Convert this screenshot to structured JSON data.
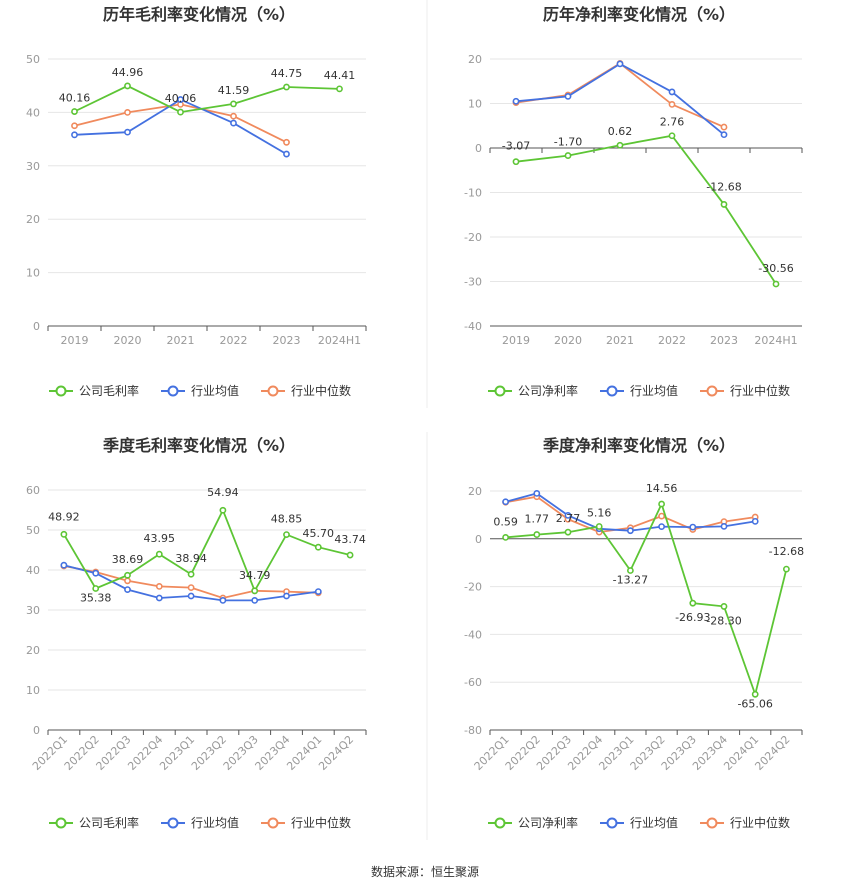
{
  "source_text": "数据来源：恒生聚源",
  "colors": {
    "company": "#5dc535",
    "industry_avg": "#4471e0",
    "industry_median": "#f08a5d"
  },
  "chart_data": [
    {
      "type": "line",
      "title": "历年毛利率变化情况（%）",
      "categories": [
        "2019",
        "2020",
        "2021",
        "2022",
        "2023",
        "2024H1"
      ],
      "ylim": [
        0,
        50
      ],
      "yticks": [
        0,
        10,
        20,
        30,
        40,
        50
      ],
      "grid": true,
      "legend": "bottom",
      "series": [
        {
          "name": "公司毛利率",
          "color": "#5dc535",
          "labels": true,
          "values": [
            40.16,
            44.96,
            40.06,
            41.59,
            44.75,
            44.41
          ]
        },
        {
          "name": "行业均值",
          "color": "#4471e0",
          "labels": false,
          "values": [
            35.8,
            36.3,
            42.4,
            38.0,
            32.2,
            null
          ]
        },
        {
          "name": "行业中位数",
          "color": "#f08a5d",
          "labels": false,
          "values": [
            37.5,
            40.0,
            41.5,
            39.3,
            34.4,
            null
          ]
        }
      ]
    },
    {
      "type": "line",
      "title": "历年净利率变化情况（%）",
      "categories": [
        "2019",
        "2020",
        "2021",
        "2022",
        "2023",
        "2024H1"
      ],
      "ylim": [
        -40,
        20
      ],
      "yticks": [
        -40,
        -30,
        -20,
        -10,
        0,
        10,
        20
      ],
      "grid": true,
      "legend": "bottom",
      "series": [
        {
          "name": "公司净利率",
          "color": "#5dc535",
          "labels": true,
          "values": [
            -3.07,
            -1.7,
            0.62,
            2.76,
            -12.68,
            -30.56
          ]
        },
        {
          "name": "行业均值",
          "color": "#4471e0",
          "labels": false,
          "values": [
            10.5,
            11.6,
            18.9,
            12.6,
            3.0,
            null
          ]
        },
        {
          "name": "行业中位数",
          "color": "#f08a5d",
          "labels": false,
          "values": [
            10.2,
            11.9,
            19.0,
            9.8,
            4.7,
            null
          ]
        }
      ]
    },
    {
      "type": "line",
      "title": "季度毛利率变化情况（%）",
      "categories": [
        "2022Q1",
        "2022Q2",
        "2022Q3",
        "2022Q4",
        "2023Q1",
        "2023Q2",
        "2023Q3",
        "2023Q4",
        "2024Q1",
        "2024Q2"
      ],
      "rotate_ticks": true,
      "ylim": [
        0,
        60
      ],
      "yticks": [
        0,
        10,
        20,
        30,
        40,
        50,
        60
      ],
      "grid": true,
      "legend": "bottom",
      "series": [
        {
          "name": "公司毛利率",
          "color": "#5dc535",
          "labels": true,
          "values": [
            48.92,
            35.38,
            38.69,
            43.95,
            38.94,
            54.94,
            34.79,
            48.85,
            45.7,
            43.74
          ]
        },
        {
          "name": "行业均值",
          "color": "#4471e0",
          "labels": false,
          "values": [
            41.2,
            39.2,
            35.1,
            33.0,
            33.5,
            32.4,
            32.4,
            33.5,
            34.6,
            null
          ]
        },
        {
          "name": "行业中位数",
          "color": "#f08a5d",
          "labels": false,
          "values": [
            41.0,
            39.5,
            37.3,
            35.9,
            35.6,
            33.0,
            34.8,
            34.6,
            34.3,
            null
          ]
        }
      ]
    },
    {
      "type": "line",
      "title": "季度净利率变化情况（%）",
      "categories": [
        "2022Q1",
        "2022Q2",
        "2022Q3",
        "2022Q4",
        "2023Q1",
        "2023Q2",
        "2023Q3",
        "2023Q4",
        "2024Q1",
        "2024Q2"
      ],
      "rotate_ticks": true,
      "ylim": [
        -80,
        20
      ],
      "yticks": [
        -80,
        -60,
        -40,
        -20,
        0,
        20
      ],
      "grid": true,
      "legend": "bottom",
      "series": [
        {
          "name": "公司净利率",
          "color": "#5dc535",
          "labels": true,
          "values": [
            0.59,
            1.77,
            2.77,
            5.16,
            -13.27,
            14.56,
            -26.93,
            -28.3,
            -65.06,
            -12.68
          ]
        },
        {
          "name": "行业均值",
          "color": "#4471e0",
          "labels": false,
          "values": [
            15.5,
            19.0,
            9.8,
            4.2,
            3.4,
            5.1,
            4.9,
            5.2,
            7.3,
            null
          ]
        },
        {
          "name": "行业中位数",
          "color": "#f08a5d",
          "labels": false,
          "values": [
            15.3,
            17.6,
            8.2,
            2.8,
            4.6,
            9.5,
            3.9,
            7.2,
            9.1,
            null
          ]
        }
      ]
    }
  ]
}
